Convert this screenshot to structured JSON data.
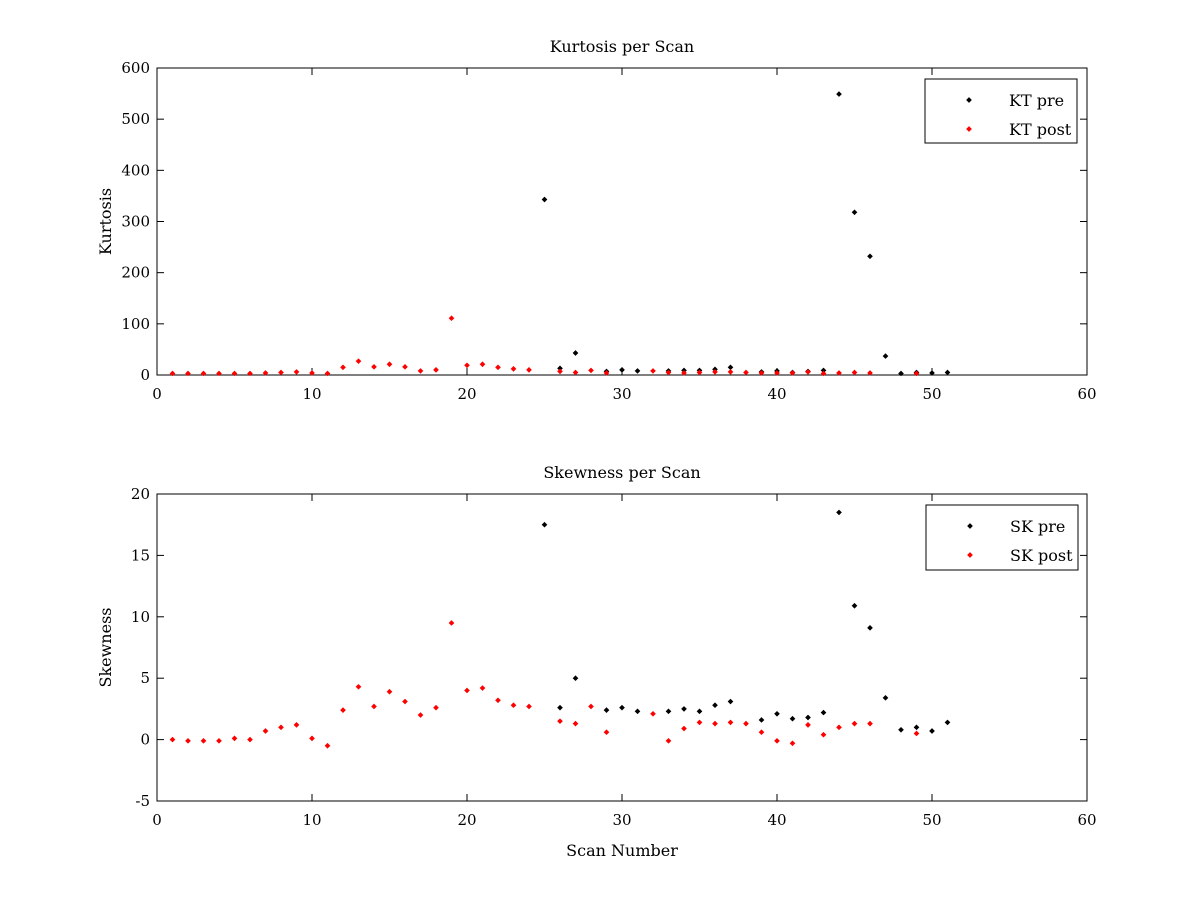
{
  "chart_data": [
    {
      "type": "scatter",
      "title": "Kurtosis per Scan",
      "xlabel": "",
      "ylabel": "Kurtosis",
      "xlim": [
        0,
        60
      ],
      "ylim": [
        0,
        600
      ],
      "xticks": [
        0,
        10,
        20,
        30,
        40,
        50,
        60
      ],
      "yticks": [
        0,
        100,
        200,
        300,
        400,
        500,
        600
      ],
      "legend_position": "top-right",
      "series": [
        {
          "name": "KT pre",
          "color": "#000000",
          "points": [
            [
              25,
              343
            ],
            [
              26,
              13
            ],
            [
              27,
              43
            ],
            [
              29,
              7
            ],
            [
              30,
              10
            ],
            [
              31,
              8
            ],
            [
              33,
              8
            ],
            [
              34,
              9
            ],
            [
              35,
              9
            ],
            [
              36,
              11
            ],
            [
              37,
              15
            ],
            [
              39,
              6
            ],
            [
              40,
              8
            ],
            [
              41,
              5
            ],
            [
              42,
              7
            ],
            [
              43,
              9
            ],
            [
              44,
              549
            ],
            [
              45,
              318
            ],
            [
              46,
              232
            ],
            [
              47,
              37
            ],
            [
              48,
              3
            ],
            [
              49,
              5
            ],
            [
              50,
              4
            ],
            [
              51,
              5
            ]
          ]
        },
        {
          "name": "KT post",
          "color": "#ff0000",
          "points": [
            [
              1,
              3
            ],
            [
              2,
              3
            ],
            [
              3,
              3
            ],
            [
              4,
              3
            ],
            [
              5,
              3
            ],
            [
              6,
              3
            ],
            [
              7,
              4
            ],
            [
              8,
              5
            ],
            [
              9,
              6
            ],
            [
              10,
              4
            ],
            [
              11,
              3
            ],
            [
              12,
              15
            ],
            [
              13,
              27
            ],
            [
              14,
              16
            ],
            [
              15,
              21
            ],
            [
              16,
              16
            ],
            [
              17,
              8
            ],
            [
              18,
              10
            ],
            [
              19,
              111
            ],
            [
              20,
              19
            ],
            [
              21,
              21
            ],
            [
              22,
              15
            ],
            [
              23,
              12
            ],
            [
              24,
              10
            ],
            [
              26,
              7
            ],
            [
              27,
              5
            ],
            [
              28,
              9
            ],
            [
              29,
              4
            ],
            [
              32,
              8
            ],
            [
              33,
              5
            ],
            [
              34,
              4
            ],
            [
              35,
              5
            ],
            [
              36,
              6
            ],
            [
              37,
              6
            ],
            [
              38,
              5
            ],
            [
              39,
              4
            ],
            [
              40,
              4
            ],
            [
              41,
              4
            ],
            [
              42,
              6
            ],
            [
              43,
              3
            ],
            [
              44,
              4
            ],
            [
              45,
              5
            ],
            [
              46,
              4
            ],
            [
              49,
              3
            ]
          ]
        }
      ]
    },
    {
      "type": "scatter",
      "title": "Skewness per Scan",
      "xlabel": "Scan Number",
      "ylabel": "Skewness",
      "xlim": [
        0,
        60
      ],
      "ylim": [
        -5,
        20
      ],
      "xticks": [
        0,
        10,
        20,
        30,
        40,
        50,
        60
      ],
      "yticks": [
        -5,
        0,
        5,
        10,
        15,
        20
      ],
      "legend_position": "top-right",
      "series": [
        {
          "name": "SK pre",
          "color": "#000000",
          "points": [
            [
              25,
              17.5
            ],
            [
              26,
              2.6
            ],
            [
              27,
              5.0
            ],
            [
              29,
              2.4
            ],
            [
              30,
              2.6
            ],
            [
              31,
              2.3
            ],
            [
              33,
              2.3
            ],
            [
              34,
              2.5
            ],
            [
              35,
              2.3
            ],
            [
              36,
              2.8
            ],
            [
              37,
              3.1
            ],
            [
              39,
              1.6
            ],
            [
              40,
              2.1
            ],
            [
              41,
              1.7
            ],
            [
              42,
              1.8
            ],
            [
              43,
              2.2
            ],
            [
              44,
              18.5
            ],
            [
              45,
              10.9
            ],
            [
              46,
              9.1
            ],
            [
              47,
              3.4
            ],
            [
              48,
              0.8
            ],
            [
              49,
              1.0
            ],
            [
              50,
              0.7
            ],
            [
              51,
              1.4
            ]
          ]
        },
        {
          "name": "SK post",
          "color": "#ff0000",
          "points": [
            [
              1,
              0.0
            ],
            [
              2,
              -0.1
            ],
            [
              3,
              -0.1
            ],
            [
              4,
              -0.1
            ],
            [
              5,
              0.1
            ],
            [
              6,
              0.0
            ],
            [
              7,
              0.7
            ],
            [
              8,
              1.0
            ],
            [
              9,
              1.2
            ],
            [
              10,
              0.1
            ],
            [
              11,
              -0.5
            ],
            [
              12,
              2.4
            ],
            [
              13,
              4.3
            ],
            [
              14,
              2.7
            ],
            [
              15,
              3.9
            ],
            [
              16,
              3.1
            ],
            [
              17,
              2.0
            ],
            [
              18,
              2.6
            ],
            [
              19,
              9.5
            ],
            [
              20,
              4.0
            ],
            [
              21,
              4.2
            ],
            [
              22,
              3.2
            ],
            [
              23,
              2.8
            ],
            [
              24,
              2.7
            ],
            [
              26,
              1.5
            ],
            [
              27,
              1.3
            ],
            [
              28,
              2.7
            ],
            [
              29,
              0.6
            ],
            [
              32,
              2.1
            ],
            [
              33,
              -0.1
            ],
            [
              34,
              0.9
            ],
            [
              35,
              1.4
            ],
            [
              36,
              1.3
            ],
            [
              37,
              1.4
            ],
            [
              38,
              1.3
            ],
            [
              39,
              0.6
            ],
            [
              40,
              -0.1
            ],
            [
              41,
              -0.3
            ],
            [
              42,
              1.2
            ],
            [
              43,
              0.4
            ],
            [
              44,
              1.0
            ],
            [
              45,
              1.3
            ],
            [
              46,
              1.3
            ],
            [
              49,
              0.5
            ]
          ]
        }
      ]
    }
  ]
}
